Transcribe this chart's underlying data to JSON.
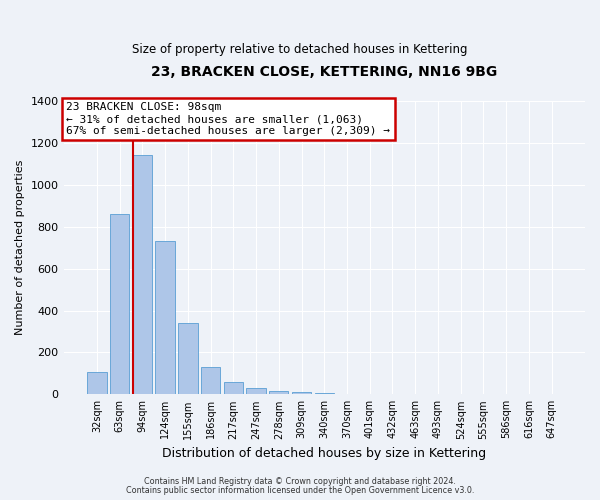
{
  "title": "23, BRACKEN CLOSE, KETTERING, NN16 9BG",
  "subtitle": "Size of property relative to detached houses in Kettering",
  "xlabel": "Distribution of detached houses by size in Kettering",
  "ylabel": "Number of detached properties",
  "bar_labels": [
    "32sqm",
    "63sqm",
    "94sqm",
    "124sqm",
    "155sqm",
    "186sqm",
    "217sqm",
    "247sqm",
    "278sqm",
    "309sqm",
    "340sqm",
    "370sqm",
    "401sqm",
    "432sqm",
    "463sqm",
    "493sqm",
    "524sqm",
    "555sqm",
    "586sqm",
    "616sqm",
    "647sqm"
  ],
  "bar_values": [
    105,
    860,
    1140,
    730,
    340,
    130,
    60,
    32,
    18,
    12,
    8,
    0,
    0,
    0,
    0,
    0,
    0,
    0,
    0,
    0,
    0
  ],
  "bar_color": "#aec6e8",
  "bar_edge_color": "#5a9fd4",
  "ylim": [
    0,
    1400
  ],
  "yticks": [
    0,
    200,
    400,
    600,
    800,
    1000,
    1200,
    1400
  ],
  "property_line_color": "#cc0000",
  "annotation_title": "23 BRACKEN CLOSE: 98sqm",
  "annotation_line1": "← 31% of detached houses are smaller (1,063)",
  "annotation_line2": "67% of semi-detached houses are larger (2,309) →",
  "annotation_box_color": "#cc0000",
  "footnote1": "Contains HM Land Registry data © Crown copyright and database right 2024.",
  "footnote2": "Contains public sector information licensed under the Open Government Licence v3.0.",
  "background_color": "#eef2f8",
  "grid_color": "#ffffff"
}
